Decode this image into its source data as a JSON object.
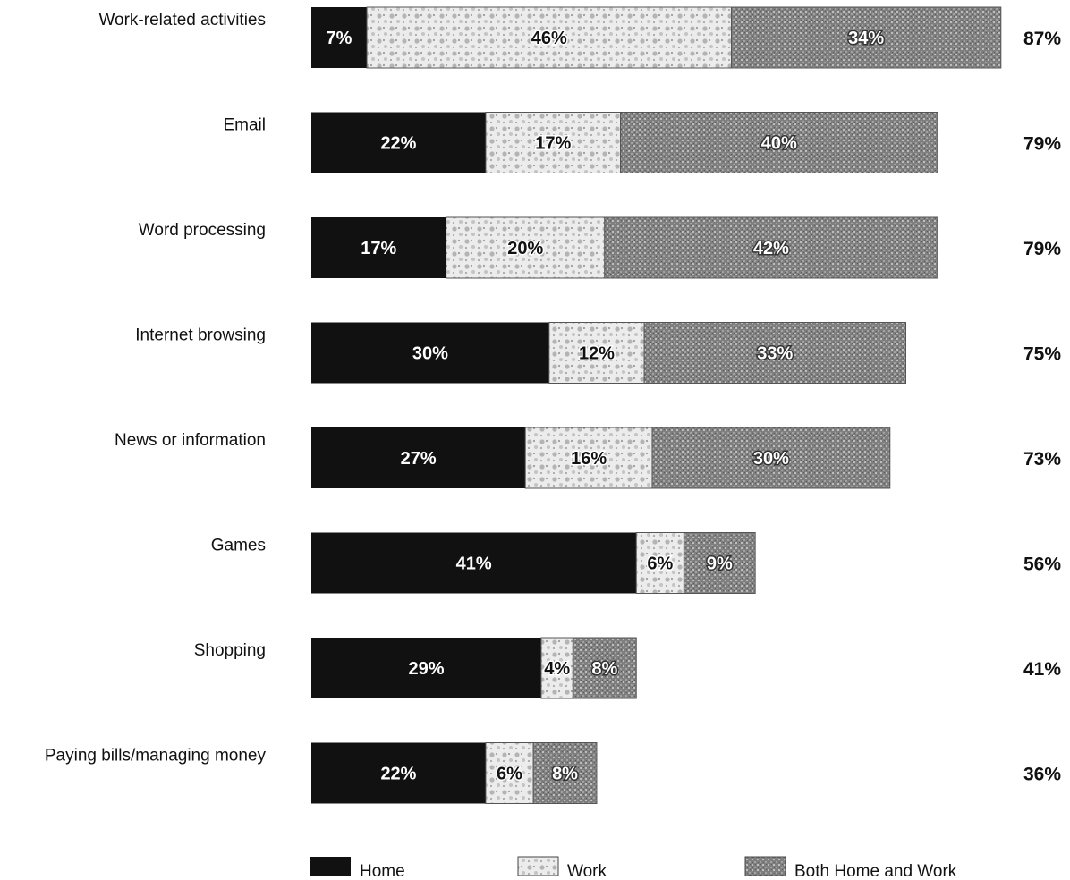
{
  "chart_data": {
    "type": "bar",
    "orientation": "horizontal",
    "stacked": true,
    "title": "",
    "xlabel": "",
    "ylabel": "",
    "categories": [
      "Work-related activities",
      "Email",
      "Word processing",
      "Internet browsing",
      "News or information",
      "Games",
      "Shopping",
      "Paying bills/managing money"
    ],
    "series": [
      {
        "name": "Home",
        "values": [
          7,
          22,
          17,
          30,
          27,
          41,
          29,
          22
        ],
        "labels": [
          "7%",
          "22%",
          "17%",
          "30%",
          "27%",
          "41%",
          "29%",
          "22%"
        ],
        "color": "#111111"
      },
      {
        "name": "Work",
        "values": [
          46,
          17,
          20,
          12,
          16,
          6,
          4,
          6
        ],
        "labels": [
          "46%",
          "17%",
          "20%",
          "12%",
          "16%",
          "6%",
          "4%",
          "6%"
        ],
        "color": "#dcdcdc"
      },
      {
        "name": "Both Home and Work",
        "values": [
          34,
          40,
          42,
          33,
          30,
          9,
          8,
          8
        ],
        "labels": [
          "34%",
          "40%",
          "42%",
          "33%",
          "30%",
          "9%",
          "8%",
          "8%"
        ],
        "color": "#8c8c8c"
      }
    ],
    "totals": [
      "87%",
      "79%",
      "79%",
      "75%",
      "73%",
      "56%",
      "41%",
      "36%"
    ],
    "xlim": [
      0,
      87
    ],
    "grid": false,
    "legend_position": "bottom"
  }
}
